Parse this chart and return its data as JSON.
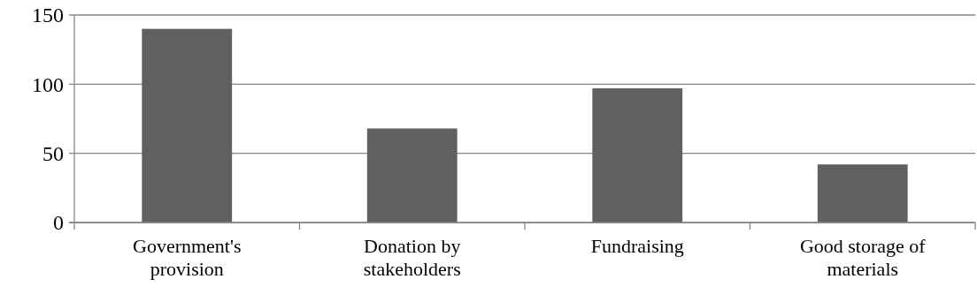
{
  "chart_data": {
    "type": "bar",
    "categories": [
      "Government's provision",
      "Donation by stakeholders",
      "Fundraising",
      "Good storage of materials"
    ],
    "values": [
      140,
      68,
      97,
      42
    ],
    "color": "#606060",
    "ylim": [
      0,
      150
    ],
    "yticks": [
      0,
      50,
      100,
      150
    ],
    "grid": "y"
  }
}
